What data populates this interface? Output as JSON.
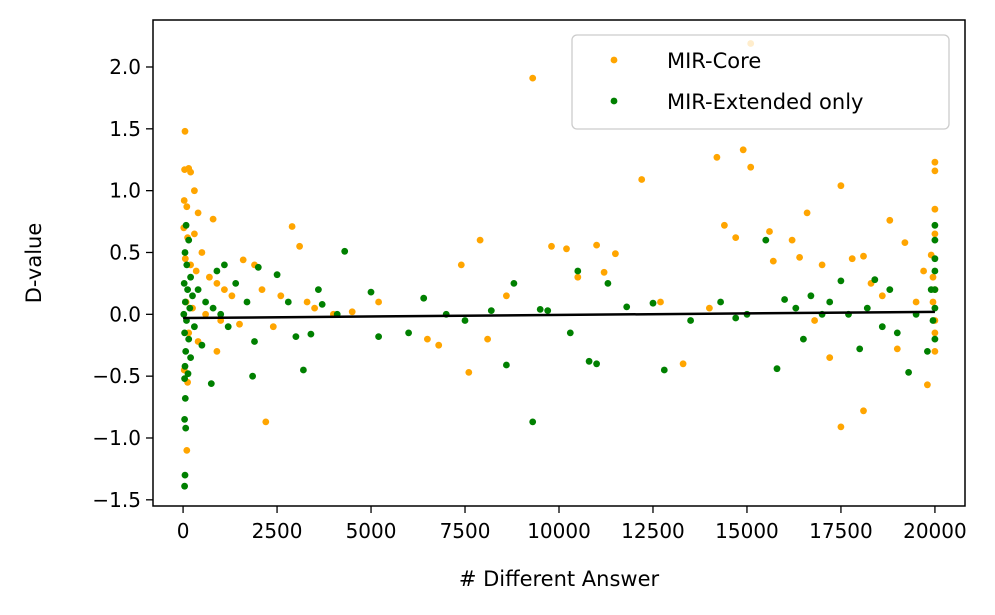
{
  "chart_data": {
    "type": "scatter",
    "title": "",
    "xlabel": "# Different Answer",
    "ylabel": "D-value",
    "xlim": [
      -800,
      20800
    ],
    "ylim": [
      -1.55,
      2.38
    ],
    "x_ticks": [
      0,
      2500,
      5000,
      7500,
      10000,
      12500,
      15000,
      17500,
      20000
    ],
    "x_tick_labels": [
      "0",
      "2500",
      "5000",
      "7500",
      "10000",
      "12500",
      "15000",
      "17500",
      "20000"
    ],
    "y_ticks": [
      -1.5,
      -1.0,
      -0.5,
      0.0,
      0.5,
      1.0,
      1.5,
      2.0
    ],
    "y_tick_labels": [
      "−1.5",
      "−1.0",
      "−0.5",
      "0.0",
      "0.5",
      "1.0",
      "1.5",
      "2.0"
    ],
    "grid": false,
    "legend_position": "top-right",
    "series": [
      {
        "name": "MIR-Core",
        "color": "#ffa500",
        "points": [
          [
            50,
            1.48
          ],
          [
            40,
            1.17
          ],
          [
            150,
            1.18
          ],
          [
            200,
            1.15
          ],
          [
            300,
            1.0
          ],
          [
            30,
            0.92
          ],
          [
            100,
            0.87
          ],
          [
            400,
            0.82
          ],
          [
            800,
            0.77
          ],
          [
            20,
            0.7
          ],
          [
            120,
            0.62
          ],
          [
            300,
            0.65
          ],
          [
            500,
            0.5
          ],
          [
            60,
            0.45
          ],
          [
            200,
            0.4
          ],
          [
            350,
            0.35
          ],
          [
            700,
            0.3
          ],
          [
            900,
            0.25
          ],
          [
            1100,
            0.2
          ],
          [
            1300,
            0.15
          ],
          [
            80,
            0.1
          ],
          [
            250,
            0.05
          ],
          [
            600,
            0.0
          ],
          [
            1000,
            -0.05
          ],
          [
            1500,
            -0.08
          ],
          [
            150,
            -0.15
          ],
          [
            400,
            -0.22
          ],
          [
            900,
            -0.3
          ],
          [
            30,
            -0.45
          ],
          [
            120,
            -0.55
          ],
          [
            100,
            -1.1
          ],
          [
            1600,
            0.44
          ],
          [
            1900,
            0.4
          ],
          [
            2100,
            0.2
          ],
          [
            2600,
            0.15
          ],
          [
            2900,
            0.71
          ],
          [
            3100,
            0.55
          ],
          [
            3300,
            0.1
          ],
          [
            2400,
            -0.1
          ],
          [
            2200,
            -0.87
          ],
          [
            3500,
            0.05
          ],
          [
            4000,
            0.0
          ],
          [
            4500,
            0.02
          ],
          [
            5200,
            0.1
          ],
          [
            6500,
            -0.2
          ],
          [
            6800,
            -0.25
          ],
          [
            7400,
            0.4
          ],
          [
            7600,
            -0.47
          ],
          [
            7900,
            0.6
          ],
          [
            8100,
            -0.2
          ],
          [
            8600,
            0.15
          ],
          [
            9300,
            1.91
          ],
          [
            9800,
            0.55
          ],
          [
            10200,
            0.53
          ],
          [
            10500,
            0.3
          ],
          [
            11000,
            0.56
          ],
          [
            11200,
            0.34
          ],
          [
            11500,
            0.49
          ],
          [
            12200,
            1.09
          ],
          [
            12700,
            0.1
          ],
          [
            13300,
            -0.4
          ],
          [
            14000,
            0.05
          ],
          [
            14200,
            1.27
          ],
          [
            14400,
            0.72
          ],
          [
            14700,
            0.62
          ],
          [
            14900,
            1.33
          ],
          [
            15100,
            1.19
          ],
          [
            15100,
            2.19
          ],
          [
            15600,
            0.67
          ],
          [
            15700,
            0.43
          ],
          [
            16200,
            0.6
          ],
          [
            16400,
            0.46
          ],
          [
            16600,
            0.82
          ],
          [
            16800,
            -0.05
          ],
          [
            17000,
            0.4
          ],
          [
            17200,
            -0.35
          ],
          [
            17500,
            1.04
          ],
          [
            17500,
            -0.91
          ],
          [
            17800,
            0.45
          ],
          [
            18100,
            0.47
          ],
          [
            18100,
            -0.78
          ],
          [
            18300,
            0.25
          ],
          [
            18600,
            0.15
          ],
          [
            18800,
            0.76
          ],
          [
            19000,
            -0.28
          ],
          [
            19200,
            0.58
          ],
          [
            19500,
            0.1
          ],
          [
            19700,
            0.35
          ],
          [
            19800,
            -0.57
          ],
          [
            19900,
            0.48
          ],
          [
            19950,
            0.3
          ],
          [
            20000,
            1.23
          ],
          [
            20000,
            1.16
          ],
          [
            20000,
            0.85
          ],
          [
            20000,
            0.65
          ],
          [
            20000,
            0.2
          ],
          [
            19950,
            0.1
          ],
          [
            20000,
            -0.05
          ],
          [
            20000,
            -0.15
          ],
          [
            20000,
            -0.3
          ]
        ]
      },
      {
        "name": "MIR-Extended only",
        "color": "#008000",
        "points": [
          [
            80,
            0.72
          ],
          [
            150,
            0.6
          ],
          [
            50,
            0.5
          ],
          [
            100,
            0.4
          ],
          [
            200,
            0.3
          ],
          [
            30,
            0.25
          ],
          [
            120,
            0.2
          ],
          [
            250,
            0.15
          ],
          [
            60,
            0.1
          ],
          [
            180,
            0.05
          ],
          [
            20,
            0.0
          ],
          [
            90,
            -0.05
          ],
          [
            300,
            -0.1
          ],
          [
            40,
            -0.15
          ],
          [
            150,
            -0.2
          ],
          [
            70,
            -0.3
          ],
          [
            200,
            -0.35
          ],
          [
            50,
            -0.42
          ],
          [
            130,
            -0.48
          ],
          [
            40,
            -0.52
          ],
          [
            60,
            -0.68
          ],
          [
            40,
            -0.85
          ],
          [
            70,
            -0.92
          ],
          [
            50,
            -1.3
          ],
          [
            40,
            -1.39
          ],
          [
            400,
            0.2
          ],
          [
            600,
            0.1
          ],
          [
            800,
            0.05
          ],
          [
            1000,
            0.0
          ],
          [
            1200,
            -0.1
          ],
          [
            500,
            -0.25
          ],
          [
            750,
            -0.56
          ],
          [
            900,
            0.35
          ],
          [
            1100,
            0.4
          ],
          [
            1400,
            0.25
          ],
          [
            1700,
            0.1
          ],
          [
            1900,
            -0.22
          ],
          [
            1850,
            -0.5
          ],
          [
            2000,
            0.38
          ],
          [
            2500,
            0.32
          ],
          [
            2800,
            0.1
          ],
          [
            3000,
            -0.18
          ],
          [
            3200,
            -0.45
          ],
          [
            3400,
            -0.16
          ],
          [
            3600,
            0.2
          ],
          [
            3700,
            0.08
          ],
          [
            4100,
            0.0
          ],
          [
            4300,
            0.51
          ],
          [
            5000,
            0.18
          ],
          [
            5200,
            -0.18
          ],
          [
            6000,
            -0.15
          ],
          [
            6400,
            0.13
          ],
          [
            7000,
            0.0
          ],
          [
            7500,
            -0.05
          ],
          [
            8200,
            0.03
          ],
          [
            8600,
            -0.41
          ],
          [
            8800,
            0.25
          ],
          [
            9300,
            -0.87
          ],
          [
            9500,
            0.04
          ],
          [
            9700,
            0.03
          ],
          [
            10300,
            -0.15
          ],
          [
            10500,
            0.35
          ],
          [
            10800,
            -0.38
          ],
          [
            11000,
            -0.4
          ],
          [
            11300,
            0.25
          ],
          [
            11800,
            0.06
          ],
          [
            12500,
            0.09
          ],
          [
            12800,
            -0.45
          ],
          [
            13500,
            -0.05
          ],
          [
            14300,
            0.1
          ],
          [
            14700,
            -0.03
          ],
          [
            15000,
            0.0
          ],
          [
            15500,
            0.6
          ],
          [
            15800,
            -0.44
          ],
          [
            16000,
            0.12
          ],
          [
            16300,
            0.05
          ],
          [
            16500,
            -0.2
          ],
          [
            16700,
            0.15
          ],
          [
            17000,
            0.0
          ],
          [
            17200,
            0.1
          ],
          [
            17500,
            0.27
          ],
          [
            17700,
            0.0
          ],
          [
            18000,
            -0.28
          ],
          [
            18200,
            0.05
          ],
          [
            18400,
            0.28
          ],
          [
            18600,
            -0.1
          ],
          [
            18800,
            0.2
          ],
          [
            19000,
            -0.15
          ],
          [
            19300,
            -0.47
          ],
          [
            19500,
            0.0
          ],
          [
            19800,
            -0.3
          ],
          [
            19900,
            0.2
          ],
          [
            20000,
            0.72
          ],
          [
            20000,
            0.6
          ],
          [
            20000,
            0.45
          ],
          [
            20000,
            0.35
          ],
          [
            20000,
            0.2
          ],
          [
            20000,
            0.05
          ],
          [
            19950,
            -0.05
          ],
          [
            20000,
            -0.2
          ]
        ]
      }
    ],
    "trend_line": {
      "color": "#000000",
      "points": [
        [
          0,
          -0.03
        ],
        [
          20000,
          0.02
        ]
      ]
    }
  }
}
